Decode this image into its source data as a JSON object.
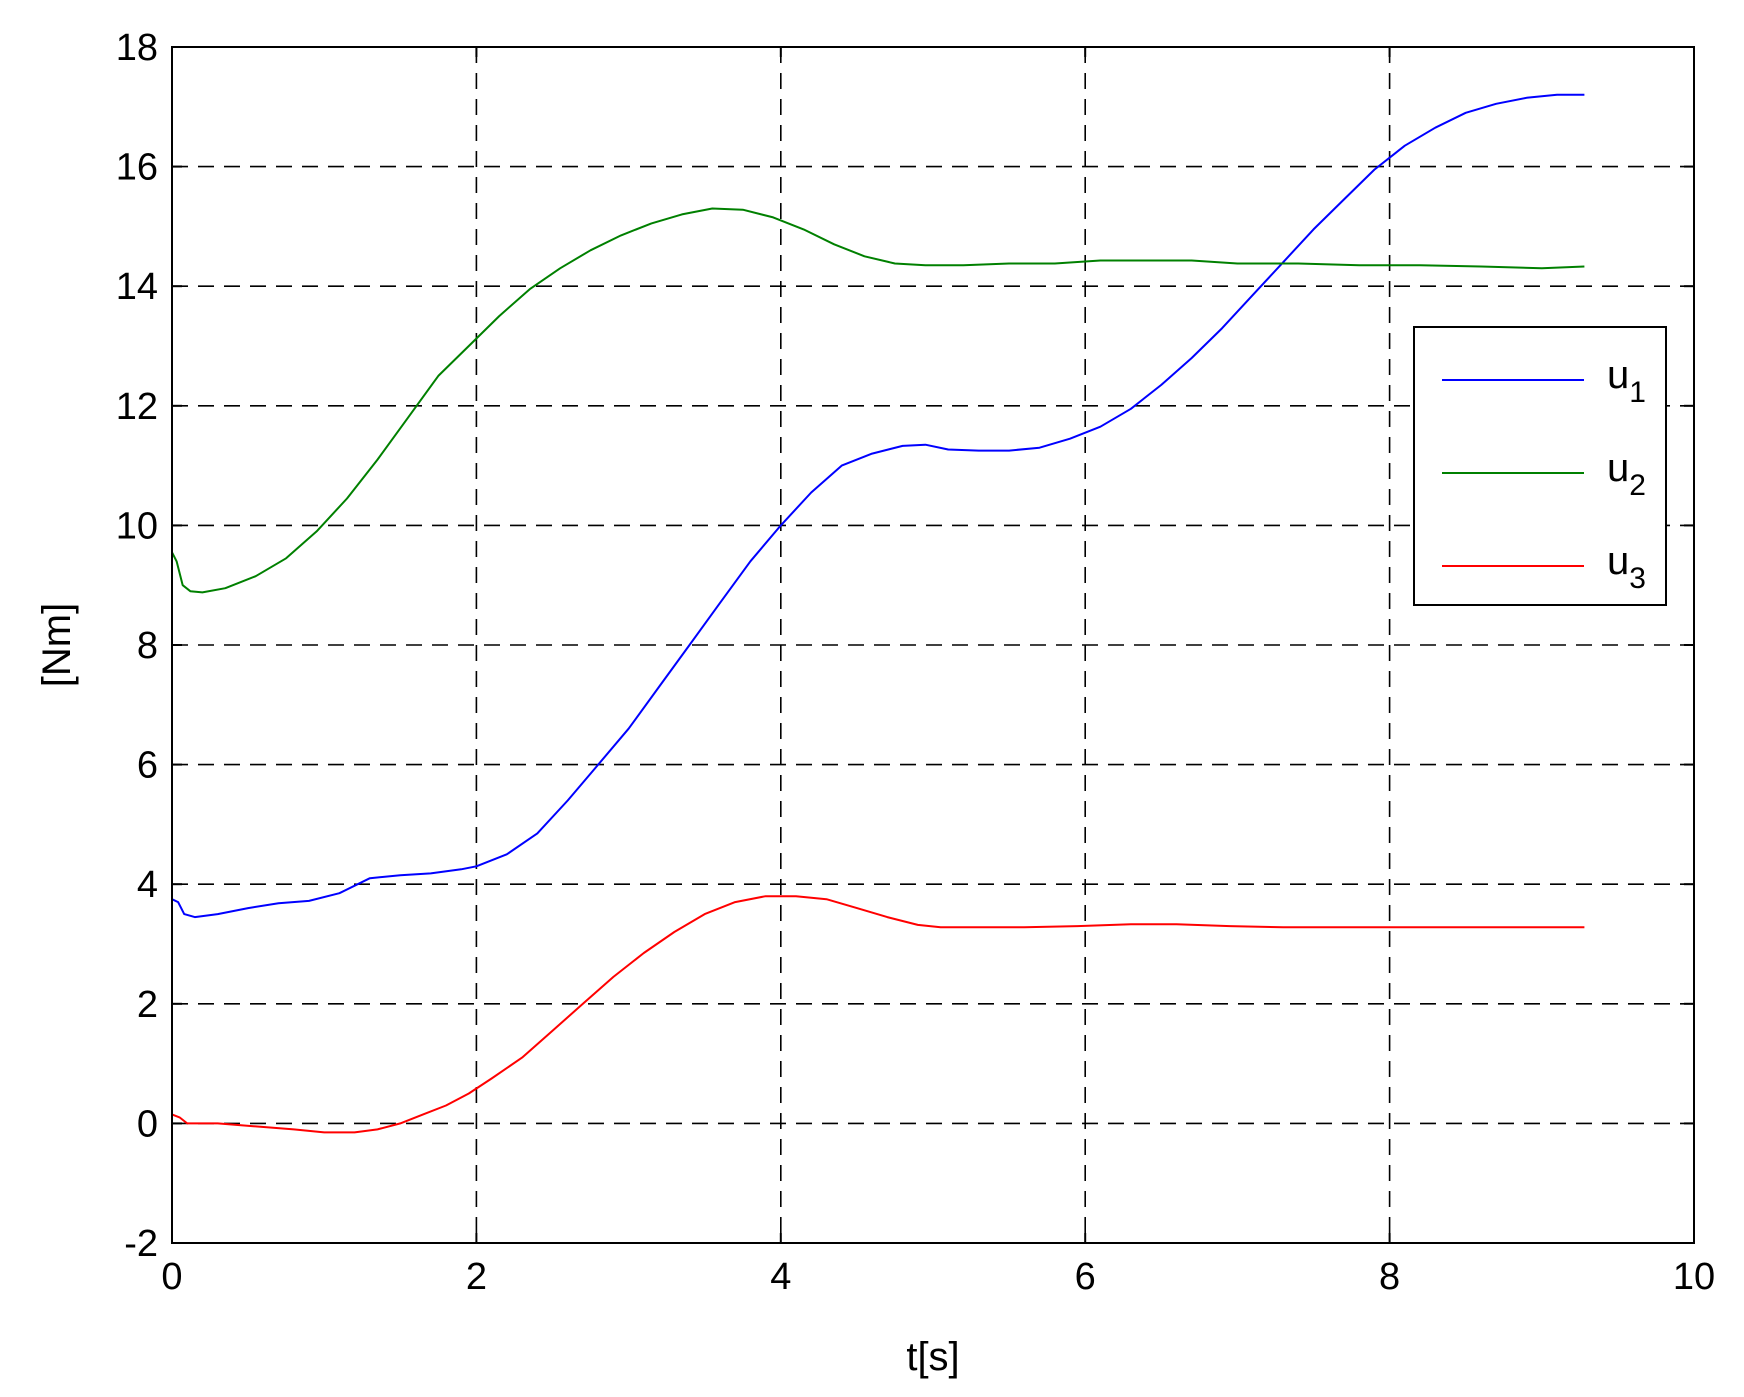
{
  "chart_data": {
    "type": "line",
    "title": "",
    "xlabel": "t[s]",
    "ylabel": "[Nm]",
    "xlim": [
      0,
      10
    ],
    "ylim": [
      -2,
      18
    ],
    "xticks": [
      0,
      2,
      4,
      6,
      8,
      10
    ],
    "yticks": [
      -2,
      0,
      2,
      4,
      6,
      8,
      10,
      12,
      14,
      16,
      18
    ],
    "xtick_labels": [
      "0",
      "2",
      "4",
      "6",
      "8",
      "10"
    ],
    "ytick_labels": [
      "-2",
      "0",
      "2",
      "4",
      "6",
      "8",
      "10",
      "12",
      "14",
      "16",
      "18"
    ],
    "grid": true,
    "grid_style": "dashed",
    "legend_position": "right",
    "series": [
      {
        "name": "u1",
        "legend_base": "u",
        "legend_sub": "1",
        "color": "#0000ff",
        "x": [
          0,
          0.04,
          0.08,
          0.15,
          0.3,
          0.5,
          0.7,
          0.9,
          1.1,
          1.3,
          1.5,
          1.7,
          1.9,
          2.0,
          2.2,
          2.4,
          2.6,
          2.8,
          3.0,
          3.2,
          3.4,
          3.6,
          3.8,
          4.0,
          4.2,
          4.4,
          4.6,
          4.8,
          4.95,
          5.1,
          5.3,
          5.5,
          5.7,
          5.9,
          6.1,
          6.3,
          6.5,
          6.7,
          6.9,
          7.1,
          7.3,
          7.5,
          7.7,
          7.9,
          8.1,
          8.3,
          8.5,
          8.7,
          8.9,
          9.1,
          9.28
        ],
        "y": [
          3.75,
          3.7,
          3.5,
          3.45,
          3.5,
          3.6,
          3.68,
          3.72,
          3.85,
          4.1,
          4.15,
          4.18,
          4.25,
          4.3,
          4.5,
          4.85,
          5.4,
          6.0,
          6.6,
          7.3,
          8.0,
          8.7,
          9.4,
          10.0,
          10.55,
          11.0,
          11.2,
          11.33,
          11.35,
          11.27,
          11.25,
          11.25,
          11.3,
          11.45,
          11.65,
          11.95,
          12.35,
          12.8,
          13.3,
          13.85,
          14.4,
          14.95,
          15.45,
          15.95,
          16.35,
          16.65,
          16.9,
          17.05,
          17.15,
          17.2,
          17.2
        ]
      },
      {
        "name": "u2",
        "legend_base": "u",
        "legend_sub": "2",
        "color": "#008000",
        "x": [
          0,
          0.03,
          0.07,
          0.12,
          0.2,
          0.35,
          0.55,
          0.75,
          0.95,
          1.15,
          1.35,
          1.55,
          1.75,
          1.95,
          2.15,
          2.35,
          2.55,
          2.75,
          2.95,
          3.15,
          3.35,
          3.55,
          3.75,
          3.95,
          4.15,
          4.35,
          4.55,
          4.75,
          4.95,
          5.2,
          5.5,
          5.8,
          6.1,
          6.4,
          6.7,
          7.0,
          7.4,
          7.8,
          8.2,
          8.6,
          9.0,
          9.28
        ],
        "y": [
          9.55,
          9.4,
          9.0,
          8.9,
          8.88,
          8.95,
          9.15,
          9.45,
          9.9,
          10.45,
          11.1,
          11.8,
          12.5,
          13.0,
          13.5,
          13.95,
          14.3,
          14.6,
          14.85,
          15.05,
          15.2,
          15.3,
          15.28,
          15.15,
          14.95,
          14.7,
          14.5,
          14.38,
          14.35,
          14.35,
          14.38,
          14.38,
          14.43,
          14.43,
          14.43,
          14.38,
          14.38,
          14.35,
          14.35,
          14.33,
          14.3,
          14.33
        ]
      },
      {
        "name": "u3",
        "legend_base": "u",
        "legend_sub": "3",
        "color": "#ff0000",
        "x": [
          0,
          0.05,
          0.1,
          0.3,
          0.55,
          0.8,
          1.0,
          1.2,
          1.35,
          1.5,
          1.65,
          1.8,
          1.95,
          2.1,
          2.3,
          2.5,
          2.7,
          2.9,
          3.1,
          3.3,
          3.5,
          3.7,
          3.9,
          4.1,
          4.3,
          4.5,
          4.7,
          4.9,
          5.05,
          5.3,
          5.6,
          5.95,
          6.3,
          6.6,
          6.95,
          7.3,
          7.7,
          8.1,
          8.5,
          8.9,
          9.28
        ],
        "y": [
          0.15,
          0.1,
          0.0,
          0.0,
          -0.05,
          -0.1,
          -0.15,
          -0.15,
          -0.1,
          0.0,
          0.15,
          0.3,
          0.5,
          0.75,
          1.1,
          1.55,
          2.0,
          2.45,
          2.85,
          3.2,
          3.5,
          3.7,
          3.8,
          3.8,
          3.75,
          3.6,
          3.45,
          3.32,
          3.28,
          3.28,
          3.28,
          3.3,
          3.33,
          3.33,
          3.3,
          3.28,
          3.28,
          3.28,
          3.28,
          3.28,
          3.28
        ]
      }
    ]
  }
}
